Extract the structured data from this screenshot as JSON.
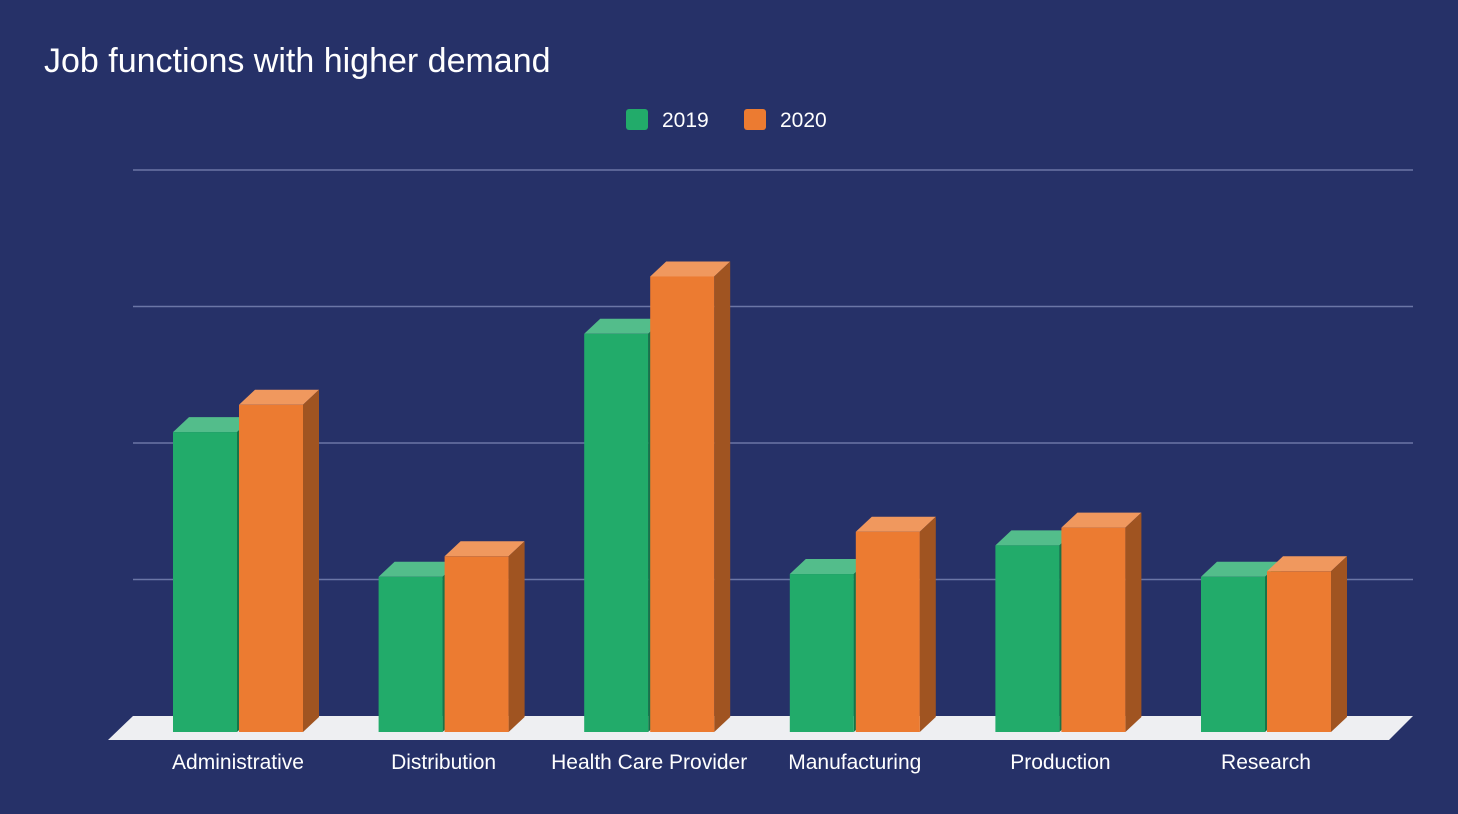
{
  "chart_data": {
    "type": "bar",
    "title": "Job functions with higher demand",
    "xlabel": "",
    "ylabel": "",
    "categories": [
      "Administrative",
      "Distribution",
      "Health Care Provider",
      "Manufacturing",
      "Production",
      "Research"
    ],
    "series": [
      {
        "name": "2019",
        "values": [
          2.08,
          1.02,
          2.8,
          1.04,
          1.25,
          1.02
        ],
        "color": "#22ab6a"
      },
      {
        "name": "2020",
        "values": [
          2.28,
          1.17,
          3.22,
          1.35,
          1.38,
          1.06
        ],
        "color": "#ec7b31"
      }
    ],
    "ylim": [
      0,
      4
    ],
    "grid": true,
    "y_tick_labels": false,
    "legend_position": "top-center",
    "style": "3d-column"
  }
}
